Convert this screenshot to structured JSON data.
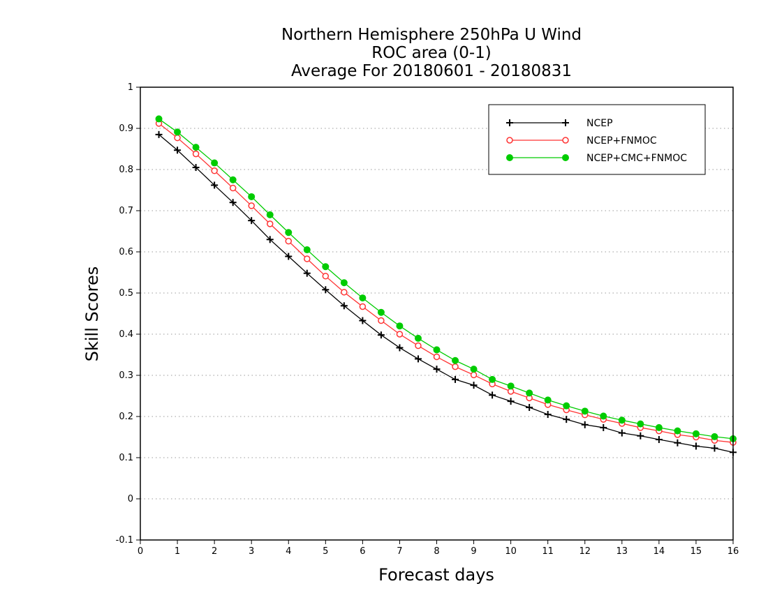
{
  "chart_data": {
    "type": "line",
    "title_lines": [
      "Northern Hemisphere 250hPa U Wind",
      "ROC area (0-1)",
      "Average For 20180601 - 20180831"
    ],
    "xlabel": "Forecast days",
    "ylabel": "Skill Scores",
    "xlim": [
      0,
      16
    ],
    "ylim": [
      -0.1,
      1
    ],
    "xticks": [
      "0",
      "1",
      "2",
      "3",
      "4",
      "5",
      "6",
      "7",
      "8",
      "9",
      "10",
      "11",
      "12",
      "13",
      "14",
      "15",
      "16"
    ],
    "yticks": [
      "-0.1",
      "0",
      "0.1",
      "0.2",
      "0.3",
      "0.4",
      "0.5",
      "0.6",
      "0.7",
      "0.8",
      "0.9",
      "1"
    ],
    "grid": "horizontal dotted",
    "legend_position": "top-right",
    "x": [
      0.5,
      1,
      1.5,
      2,
      2.5,
      3,
      3.5,
      4,
      4.5,
      5,
      5.5,
      6,
      6.5,
      7,
      7.5,
      8,
      8.5,
      9,
      9.5,
      10,
      10.5,
      11,
      11.5,
      12,
      12.5,
      13,
      13.5,
      14,
      14.5,
      15,
      15.5,
      16
    ],
    "series": [
      {
        "name": "NCEP",
        "color": "#000000",
        "marker": "plus",
        "values": [
          0.885,
          0.847,
          0.805,
          0.762,
          0.72,
          0.676,
          0.63,
          0.589,
          0.548,
          0.508,
          0.469,
          0.433,
          0.398,
          0.367,
          0.34,
          0.315,
          0.29,
          0.276,
          0.252,
          0.237,
          0.222,
          0.205,
          0.193,
          0.18,
          0.173,
          0.16,
          0.153,
          0.144,
          0.136,
          0.128,
          0.123,
          0.113
        ]
      },
      {
        "name": "NCEP+FNMOC",
        "color": "#ff3333",
        "marker": "open-circle",
        "values": [
          0.912,
          0.877,
          0.838,
          0.797,
          0.755,
          0.712,
          0.668,
          0.626,
          0.583,
          0.541,
          0.502,
          0.467,
          0.433,
          0.4,
          0.372,
          0.345,
          0.321,
          0.301,
          0.279,
          0.261,
          0.245,
          0.229,
          0.216,
          0.204,
          0.193,
          0.183,
          0.173,
          0.165,
          0.156,
          0.15,
          0.142,
          0.137
        ]
      },
      {
        "name": "NCEP+CMC+FNMOC",
        "color": "#00cc00",
        "marker": "filled-circle",
        "values": [
          0.923,
          0.891,
          0.854,
          0.816,
          0.775,
          0.734,
          0.69,
          0.647,
          0.605,
          0.564,
          0.525,
          0.488,
          0.453,
          0.42,
          0.39,
          0.362,
          0.336,
          0.315,
          0.29,
          0.274,
          0.257,
          0.24,
          0.226,
          0.213,
          0.201,
          0.191,
          0.182,
          0.173,
          0.165,
          0.158,
          0.151,
          0.146
        ]
      }
    ]
  }
}
